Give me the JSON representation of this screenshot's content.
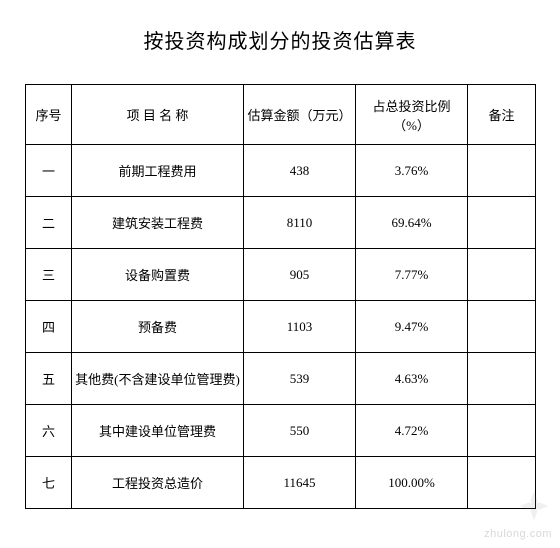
{
  "title": "按投资构成划分的投资估算表",
  "columns": [
    "序号",
    "项 目 名 称",
    "估算金额（万元）",
    "占总投资比例（%）",
    "备注"
  ],
  "rows": [
    {
      "seq": "一",
      "name": "前期工程费用",
      "amount": "438",
      "pct": "3.76%",
      "note": ""
    },
    {
      "seq": "二",
      "name": "建筑安装工程费",
      "amount": "8110",
      "pct": "69.64%",
      "note": ""
    },
    {
      "seq": "三",
      "name": "设备购置费",
      "amount": "905",
      "pct": "7.77%",
      "note": ""
    },
    {
      "seq": "四",
      "name": "预备费",
      "amount": "1103",
      "pct": "9.47%",
      "note": ""
    },
    {
      "seq": "五",
      "name": "其他费(不含建设单位管理费)",
      "amount": "539",
      "pct": "4.63%",
      "note": ""
    },
    {
      "seq": "六",
      "name": "其中建设单位管理费",
      "amount": "550",
      "pct": "4.72%",
      "note": ""
    },
    {
      "seq": "七",
      "name": "工程投资总造价",
      "amount": "11645",
      "pct": "100.00%",
      "note": ""
    }
  ],
  "watermark_text": "zhulong.com"
}
